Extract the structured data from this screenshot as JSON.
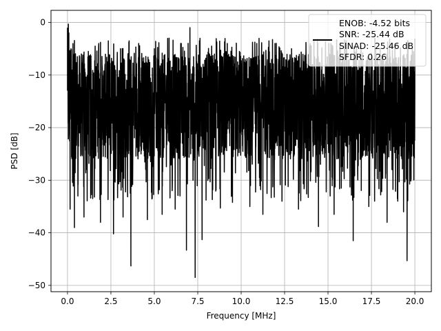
{
  "chart_data": {
    "type": "line",
    "title": "",
    "xlabel": "Frequency [MHz]",
    "ylabel": "PSD [dB]",
    "xlim": [
      -0.95,
      20.95
    ],
    "ylim": [
      -51.2,
      2.3
    ],
    "xticks": [
      0.0,
      2.5,
      5.0,
      7.5,
      10.0,
      12.5,
      15.0,
      17.5,
      20.0
    ],
    "xtick_labels": [
      "0.0",
      "2.5",
      "5.0",
      "7.5",
      "10.0",
      "12.5",
      "15.0",
      "17.5",
      "20.0"
    ],
    "yticks": [
      0,
      -10,
      -20,
      -30,
      -40,
      -50
    ],
    "ytick_labels": [
      "0",
      "−10",
      "−20",
      "−30",
      "−40",
      "−50"
    ],
    "grid": true,
    "legend_position": "top-right",
    "legend_lines": [
      "ENOB: -4.52 bits",
      "SNR: -25.44 dB",
      "SINAD: -25.46 dB",
      "SFDR: 0.26"
    ],
    "series": [
      {
        "color": "#000000",
        "x_range": [
          0.0,
          20.0
        ],
        "noise_band_db": [
          -26,
          -6
        ],
        "x": [
          0.0,
          0.05,
          0.08,
          0.12,
          0.15,
          0.2,
          0.4,
          0.5,
          0.6,
          0.8,
          0.95,
          1.2,
          1.45,
          1.8,
          1.9,
          2.35,
          2.65,
          3.05,
          3.2,
          3.55,
          3.65,
          4.1,
          4.6,
          5.0,
          5.45,
          5.85,
          6.2,
          6.55,
          6.85,
          7.05,
          7.35,
          7.6,
          7.75,
          8.3,
          8.8,
          9.2,
          9.5,
          9.9,
          10.5,
          10.9,
          11.25,
          11.6,
          12.35,
          12.9,
          13.3,
          13.95,
          14.45,
          15.05,
          15.35,
          16.05,
          16.45,
          16.9,
          17.35,
          18.0,
          18.4,
          18.85,
          19.35,
          19.55,
          19.85,
          20.0
        ],
        "y": [
          -1.0,
          -0.3,
          -2.0,
          -13.0,
          -35.5,
          -5.0,
          -39.0,
          -8.0,
          -33.0,
          -6.0,
          -37.0,
          -5.5,
          -33.5,
          -4.0,
          -38.0,
          -3.5,
          -40.2,
          -5.0,
          -37.0,
          -3.5,
          -46.3,
          -4.0,
          -37.5,
          -5.0,
          -36.5,
          -3.0,
          -35.5,
          -4.0,
          -43.3,
          -1.0,
          -48.5,
          -3.5,
          -41.3,
          -4.5,
          -35.3,
          -4.0,
          -34.2,
          -5.5,
          -35.0,
          -4.0,
          -36.5,
          -3.5,
          -34.0,
          -5.0,
          -35.5,
          -4.5,
          -38.8,
          -4.0,
          -36.5,
          -3.5,
          -41.5,
          -4.5,
          -35.0,
          -5.0,
          -38.0,
          -4.0,
          -36.0,
          -45.3,
          -5.0,
          -13.0
        ]
      }
    ]
  }
}
